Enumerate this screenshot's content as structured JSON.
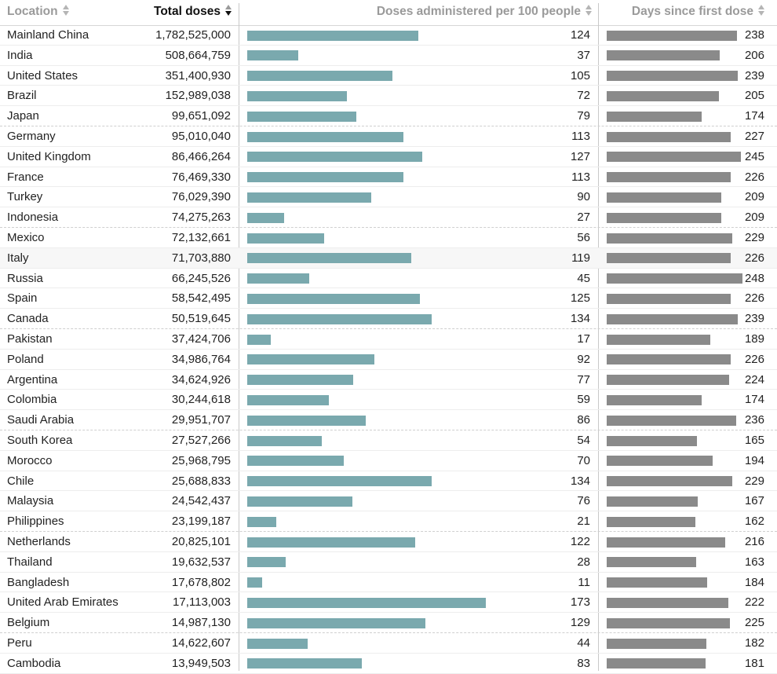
{
  "columns": {
    "location": "Location",
    "total": "Total doses",
    "per100": "Doses administered per 100 people",
    "days": "Days since first dose"
  },
  "colors": {
    "per100_bar": "#7aa9ae",
    "days_bar": "#8a8a8a"
  },
  "chart_data": {
    "type": "table",
    "sort": {
      "column": "total",
      "order": "descending"
    },
    "rows": [
      {
        "location": "Mainland China",
        "total": "1,782,525,000",
        "per100": 124,
        "days": 238
      },
      {
        "location": "India",
        "total": "508,664,759",
        "per100": 37,
        "days": 206
      },
      {
        "location": "United States",
        "total": "351,400,930",
        "per100": 105,
        "days": 239
      },
      {
        "location": "Brazil",
        "total": "152,989,038",
        "per100": 72,
        "days": 205
      },
      {
        "location": "Japan",
        "total": "99,651,092",
        "per100": 79,
        "days": 174
      },
      {
        "location": "Germany",
        "total": "95,010,040",
        "per100": 113,
        "days": 227
      },
      {
        "location": "United Kingdom",
        "total": "86,466,264",
        "per100": 127,
        "days": 245
      },
      {
        "location": "France",
        "total": "76,469,330",
        "per100": 113,
        "days": 226
      },
      {
        "location": "Turkey",
        "total": "76,029,390",
        "per100": 90,
        "days": 209
      },
      {
        "location": "Indonesia",
        "total": "74,275,263",
        "per100": 27,
        "days": 209
      },
      {
        "location": "Mexico",
        "total": "72,132,661",
        "per100": 56,
        "days": 229
      },
      {
        "location": "Italy",
        "total": "71,703,880",
        "per100": 119,
        "days": 226
      },
      {
        "location": "Russia",
        "total": "66,245,526",
        "per100": 45,
        "days": 248
      },
      {
        "location": "Spain",
        "total": "58,542,495",
        "per100": 125,
        "days": 226
      },
      {
        "location": "Canada",
        "total": "50,519,645",
        "per100": 134,
        "days": 239
      },
      {
        "location": "Pakistan",
        "total": "37,424,706",
        "per100": 17,
        "days": 189
      },
      {
        "location": "Poland",
        "total": "34,986,764",
        "per100": 92,
        "days": 226
      },
      {
        "location": "Argentina",
        "total": "34,624,926",
        "per100": 77,
        "days": 224
      },
      {
        "location": "Colombia",
        "total": "30,244,618",
        "per100": 59,
        "days": 174
      },
      {
        "location": "Saudi Arabia",
        "total": "29,951,707",
        "per100": 86,
        "days": 236
      },
      {
        "location": "South Korea",
        "total": "27,527,266",
        "per100": 54,
        "days": 165
      },
      {
        "location": "Morocco",
        "total": "25,968,795",
        "per100": 70,
        "days": 194
      },
      {
        "location": "Chile",
        "total": "25,688,833",
        "per100": 134,
        "days": 229
      },
      {
        "location": "Malaysia",
        "total": "24,542,437",
        "per100": 76,
        "days": 167
      },
      {
        "location": "Philippines",
        "total": "23,199,187",
        "per100": 21,
        "days": 162
      },
      {
        "location": "Netherlands",
        "total": "20,825,101",
        "per100": 122,
        "days": 216
      },
      {
        "location": "Thailand",
        "total": "19,632,537",
        "per100": 28,
        "days": 163
      },
      {
        "location": "Bangladesh",
        "total": "17,678,802",
        "per100": 11,
        "days": 184
      },
      {
        "location": "United Arab Emirates",
        "total": "17,113,003",
        "per100": 173,
        "days": 222
      },
      {
        "location": "Belgium",
        "total": "14,987,130",
        "per100": 129,
        "days": 225
      },
      {
        "location": "Peru",
        "total": "14,622,607",
        "per100": 44,
        "days": 182
      },
      {
        "location": "Cambodia",
        "total": "13,949,503",
        "per100": 83,
        "days": 181
      }
    ]
  }
}
